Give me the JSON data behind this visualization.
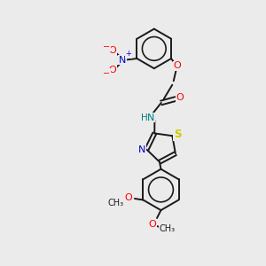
{
  "background_color": "#ebebeb",
  "bond_color": "#1a1a1a",
  "figsize": [
    3.0,
    3.0
  ],
  "dpi": 100,
  "atom_colors": {
    "O": "#ff0000",
    "N_blue": "#0000cc",
    "N_teal": "#008080",
    "S": "#cccc00",
    "C": "#1a1a1a",
    "H": "#008080"
  },
  "xlim": [
    0,
    10
  ],
  "ylim": [
    0,
    10
  ]
}
